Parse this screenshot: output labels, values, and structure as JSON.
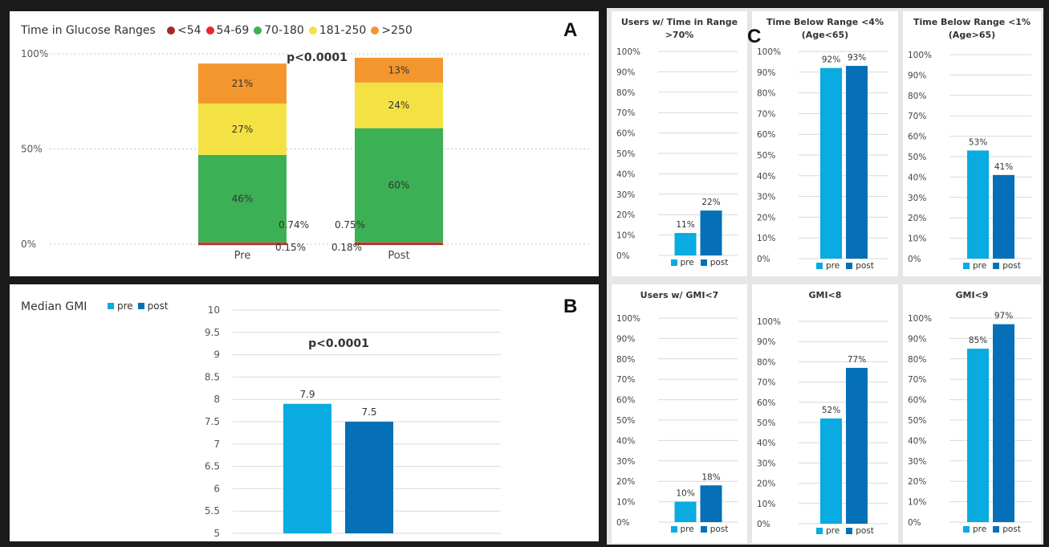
{
  "colors": {
    "pre": "#09ABE0",
    "post": "#0570B7",
    "lt54": "#A52A2A",
    "r54_69": "#E8262B",
    "r70_180": "#3CB055",
    "r181_250": "#F4E244",
    "gt250": "#F3962E"
  },
  "panel_letters": {
    "a": "A",
    "b": "B",
    "c": "C"
  },
  "chart_data": [
    {
      "id": "A",
      "type": "bar",
      "stacked": true,
      "title": "Time in Glucose Ranges",
      "categories": [
        "Pre",
        "Post"
      ],
      "series": [
        {
          "name": "<54",
          "values": [
            0.15,
            0.18
          ],
          "labels": [
            "0.15%",
            "0.18%"
          ]
        },
        {
          "name": "54-69",
          "values": [
            0.74,
            0.75
          ],
          "labels": [
            "0.74%",
            "0.75%"
          ]
        },
        {
          "name": "70-180",
          "values": [
            46,
            60
          ],
          "labels": [
            "46%",
            "60%"
          ]
        },
        {
          "name": "181-250",
          "values": [
            27,
            24
          ],
          "labels": [
            "27%",
            "24%"
          ]
        },
        {
          "name": ">250",
          "values": [
            21,
            13
          ],
          "labels": [
            "21%",
            "13%"
          ]
        }
      ],
      "yticks": [
        "100%",
        "50%",
        "0%"
      ],
      "ylim": [
        0,
        100
      ],
      "annotation": "p<0.0001",
      "legend_position": "top-left"
    },
    {
      "id": "B",
      "type": "bar",
      "title": "Median GMI",
      "categories": [
        "pre",
        "post"
      ],
      "values": [
        7.9,
        7.5
      ],
      "labels": [
        "7.9",
        "7.5"
      ],
      "legend": [
        "pre",
        "post"
      ],
      "yticks": [
        "10",
        "9.5",
        "9",
        "8.5",
        "8",
        "7.5",
        "7",
        "6.5",
        "6",
        "5.5",
        "5"
      ],
      "ylim": [
        5,
        10
      ],
      "annotation": "p<0.0001",
      "legend_position": "top-left"
    },
    {
      "id": "C1",
      "type": "bar",
      "title_lines": [
        "Users w/ Time in Range",
        ">70%"
      ],
      "categories": [
        "pre",
        "post"
      ],
      "values": [
        11,
        22
      ],
      "labels": [
        "11%",
        "22%"
      ],
      "ylim": [
        0,
        100
      ],
      "legend_position": "bottom"
    },
    {
      "id": "C2",
      "type": "bar",
      "title_lines": [
        "Time Below Range <4%",
        "(Age<65)"
      ],
      "categories": [
        "pre",
        "post"
      ],
      "values": [
        92,
        93
      ],
      "labels": [
        "92%",
        "93%"
      ],
      "ylim": [
        0,
        100
      ],
      "legend_position": "bottom"
    },
    {
      "id": "C3",
      "type": "bar",
      "title_lines": [
        "Time Below Range <1%",
        "(Age>65)"
      ],
      "categories": [
        "pre",
        "post"
      ],
      "values": [
        53,
        41
      ],
      "labels": [
        "53%",
        "41%"
      ],
      "ylim": [
        0,
        100
      ],
      "legend_position": "bottom"
    },
    {
      "id": "C4",
      "type": "bar",
      "title_lines": [
        "Users w/ GMI<7"
      ],
      "categories": [
        "pre",
        "post"
      ],
      "values": [
        10,
        18
      ],
      "labels": [
        "10%",
        "18%"
      ],
      "ylim": [
        0,
        100
      ],
      "legend_position": "bottom"
    },
    {
      "id": "C5",
      "type": "bar",
      "title_lines": [
        "GMI<8"
      ],
      "categories": [
        "pre",
        "post"
      ],
      "values": [
        52,
        77
      ],
      "labels": [
        "52%",
        "77%"
      ],
      "ylim": [
        0,
        100
      ],
      "legend_position": "bottom"
    },
    {
      "id": "C6",
      "type": "bar",
      "title_lines": [
        "GMI<9"
      ],
      "categories": [
        "pre",
        "post"
      ],
      "values": [
        85,
        97
      ],
      "labels": [
        "85%",
        "97%"
      ],
      "ylim": [
        0,
        100
      ],
      "legend_position": "bottom"
    }
  ],
  "pct_ticks": [
    "100%",
    "90%",
    "80%",
    "70%",
    "60%",
    "50%",
    "40%",
    "30%",
    "20%",
    "10%",
    "0%"
  ]
}
